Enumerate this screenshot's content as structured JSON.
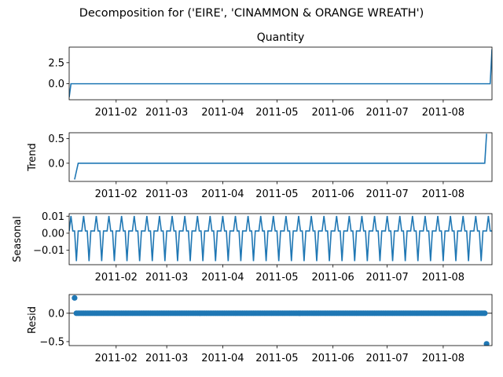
{
  "figure": {
    "suptitle": "Decomposition for ('EIRE', 'CINAMMON & ORANGE WREATH')"
  },
  "chart_data": [
    {
      "type": "line",
      "id": "observed",
      "title": "Quantity",
      "ylabel": "",
      "xlim": [
        "2011-01-06",
        "2011-08-28"
      ],
      "ylim": [
        -1.9,
        4.35
      ],
      "yticks": [
        0.0,
        2.5
      ],
      "ytick_labels": [
        "0.0",
        "2.5"
      ],
      "xticks": [
        "2011-02-01",
        "2011-03-01",
        "2011-04-01",
        "2011-05-01",
        "2011-06-01",
        "2011-07-01",
        "2011-08-01"
      ],
      "xtick_labels": [
        "2011-02",
        "2011-03",
        "2011-04",
        "2011-05",
        "2011-06",
        "2011-07",
        "2011-08"
      ],
      "series": [
        {
          "color": "#1f77b4",
          "x": [
            "2011-01-06",
            "2011-01-07",
            "2011-08-27",
            "2011-08-28"
          ],
          "y": [
            -1.6,
            0.0,
            0.0,
            4.1
          ]
        }
      ]
    },
    {
      "type": "line",
      "id": "trend",
      "title": "",
      "ylabel": "Trend",
      "xlim": [
        "2011-01-06",
        "2011-08-28"
      ],
      "ylim": [
        -0.37,
        0.62
      ],
      "yticks": [
        0.0,
        0.5
      ],
      "ytick_labels": [
        "0.0",
        "0.5"
      ],
      "xticks": [
        "2011-02-01",
        "2011-03-01",
        "2011-04-01",
        "2011-05-01",
        "2011-06-01",
        "2011-07-01",
        "2011-08-01"
      ],
      "xtick_labels": [
        "2011-02",
        "2011-03",
        "2011-04",
        "2011-05",
        "2011-06",
        "2011-07",
        "2011-08"
      ],
      "series": [
        {
          "color": "#1f77b4",
          "x": [
            "2011-01-09",
            "2011-01-11",
            "2011-08-24",
            "2011-08-25"
          ],
          "y": [
            -0.33,
            0.0,
            0.0,
            0.6
          ]
        }
      ]
    },
    {
      "type": "line",
      "id": "seasonal",
      "title": "",
      "ylabel": "Seasonal",
      "xlim": [
        "2011-01-06",
        "2011-08-28"
      ],
      "ylim": [
        -0.0185,
        0.0115
      ],
      "yticks": [
        -0.01,
        0.0,
        0.01
      ],
      "ytick_labels": [
        "−0.01",
        "0.00",
        "0.01"
      ],
      "xticks": [
        "2011-02-01",
        "2011-03-01",
        "2011-04-01",
        "2011-05-01",
        "2011-06-01",
        "2011-07-01",
        "2011-08-01"
      ],
      "xtick_labels": [
        "2011-02",
        "2011-03",
        "2011-04",
        "2011-05",
        "2011-06",
        "2011-07",
        "2011-08"
      ],
      "seasonal_period_days": 7,
      "seasonal_pattern": [
        0.0013,
        0.0101,
        0.0013,
        0.0013,
        -0.0164,
        0.0013,
        0.0013
      ],
      "series": [
        {
          "color": "#1f77b4",
          "x_start": "2011-01-06",
          "x_end": "2011-08-28"
        }
      ]
    },
    {
      "type": "scatter",
      "id": "resid",
      "title": "",
      "ylabel": "Resid",
      "xlim": [
        "2011-01-06",
        "2011-08-28"
      ],
      "ylim": [
        -0.57,
        0.33
      ],
      "yticks": [
        -0.5,
        0.0
      ],
      "ytick_labels": [
        "−0.5",
        "0.0"
      ],
      "xticks": [
        "2011-02-01",
        "2011-03-01",
        "2011-04-01",
        "2011-05-01",
        "2011-06-01",
        "2011-07-01",
        "2011-08-01"
      ],
      "xtick_labels": [
        "2011-02",
        "2011-03",
        "2011-04",
        "2011-05",
        "2011-06",
        "2011-07",
        "2011-08"
      ],
      "zero_line": true,
      "series": [
        {
          "color": "#1f77b4",
          "x_start": "2011-01-09",
          "x_end": "2011-08-25",
          "baseline": 0.0,
          "outliers": [
            {
              "x": "2011-01-09",
              "y": 0.27
            },
            {
              "x": "2011-08-25",
              "y": -0.54
            }
          ]
        }
      ]
    }
  ]
}
